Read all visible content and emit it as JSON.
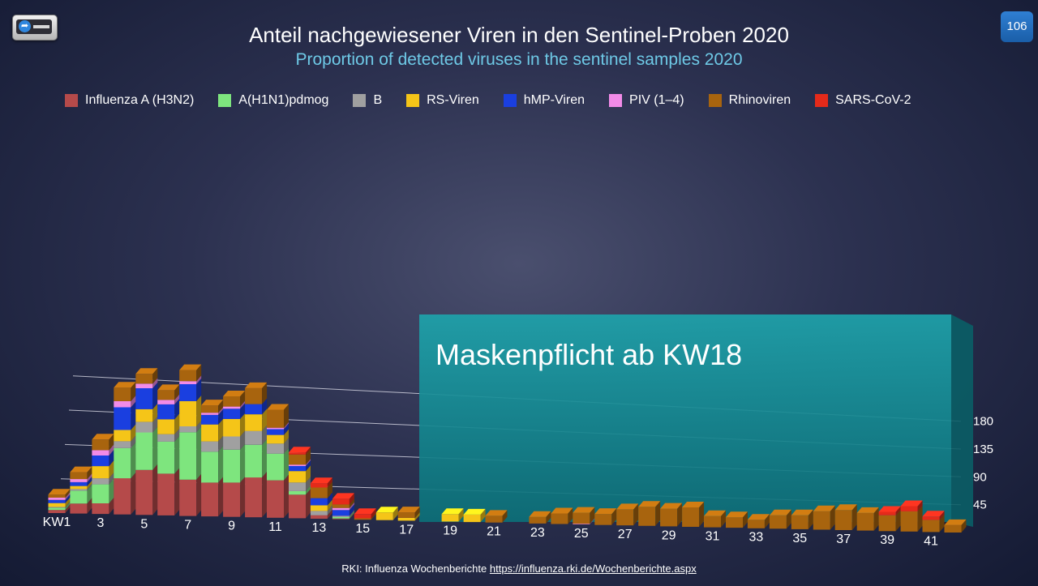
{
  "page_number": "106",
  "title": "Anteil nachgewiesener Viren in den Sentinel-Proben 2020",
  "subtitle": "Proportion of detected viruses in the sentinel samples 2020",
  "annotation": "Maskenpflicht ab KW18",
  "source": {
    "text": "RKI: Influenza Wochenberichte",
    "link": "https://influenza.rki.de/Wochenberichte.aspx"
  },
  "chart_data": {
    "type": "bar",
    "stacked": true,
    "view": "3d-perspective",
    "xlabel": "",
    "ylabel": "",
    "ylim": [
      0,
      180
    ],
    "yticks": [
      45,
      90,
      135,
      180
    ],
    "grid": true,
    "legend_position": "top",
    "categories": [
      "1",
      "2",
      "3",
      "4",
      "5",
      "6",
      "7",
      "8",
      "9",
      "10",
      "11",
      "12",
      "13",
      "14",
      "15",
      "16",
      "17",
      "18",
      "19",
      "20",
      "21",
      "22",
      "23",
      "24",
      "25",
      "26",
      "27",
      "28",
      "29",
      "30",
      "31",
      "32",
      "33",
      "34",
      "35",
      "36",
      "37",
      "38",
      "39",
      "40",
      "41",
      "42"
    ],
    "x_tick_labels": [
      "KW1",
      "",
      "3",
      "",
      "5",
      "",
      "7",
      "",
      "9",
      "",
      "11",
      "",
      "13",
      "",
      "15",
      "",
      "17",
      "",
      "19",
      "",
      "21",
      "",
      "23",
      "",
      "25",
      "",
      "27",
      "",
      "29",
      "",
      "31",
      "",
      "33",
      "",
      "35",
      "",
      "37",
      "",
      "39",
      "",
      "41",
      ""
    ],
    "series": [
      {
        "name": "Influenza A (H3N2)",
        "color": "#b54a4a",
        "values": [
          4,
          13,
          14,
          48,
          60,
          56,
          49,
          46,
          47,
          55,
          52,
          33,
          5,
          1,
          0,
          0,
          0,
          0,
          0,
          0,
          0,
          0,
          0,
          0,
          0,
          0,
          0,
          0,
          0,
          0,
          0,
          0,
          0,
          0,
          0,
          0,
          0,
          0,
          0,
          0,
          0,
          0
        ]
      },
      {
        "name": "A(H1N1)pdmog",
        "color": "#7ee57e",
        "values": [
          3,
          17,
          25,
          40,
          50,
          43,
          64,
          42,
          45,
          45,
          37,
          5,
          0,
          2,
          0,
          0,
          0,
          0,
          0,
          0,
          0,
          0,
          0,
          0,
          0,
          0,
          0,
          0,
          0,
          0,
          0,
          0,
          0,
          0,
          0,
          0,
          0,
          0,
          0,
          0,
          0,
          0
        ]
      },
      {
        "name": "B",
        "color": "#a0a0a0",
        "values": [
          1,
          2,
          8,
          9,
          14,
          10,
          8,
          14,
          18,
          19,
          14,
          12,
          6,
          2,
          0,
          0,
          0,
          0,
          0,
          0,
          0,
          0,
          0,
          0,
          0,
          0,
          0,
          0,
          0,
          0,
          0,
          0,
          0,
          0,
          0,
          0,
          0,
          0,
          0,
          0,
          0,
          0
        ]
      },
      {
        "name": "RS-Viren",
        "color": "#f5c518",
        "values": [
          5,
          4,
          16,
          15,
          17,
          20,
          34,
          23,
          24,
          23,
          12,
          16,
          8,
          0,
          0,
          11,
          4,
          0,
          11,
          11,
          0,
          0,
          0,
          0,
          0,
          0,
          0,
          0,
          0,
          0,
          0,
          0,
          0,
          0,
          0,
          0,
          0,
          0,
          0,
          0,
          0,
          0
        ]
      },
      {
        "name": "hMP-Viren",
        "color": "#1a3fe0",
        "values": [
          4,
          5,
          14,
          30,
          28,
          20,
          23,
          13,
          14,
          14,
          8,
          7,
          10,
          8,
          0,
          0,
          0,
          0,
          0,
          0,
          0,
          0,
          0,
          0,
          0,
          0,
          0,
          0,
          0,
          0,
          0,
          0,
          0,
          0,
          0,
          0,
          0,
          0,
          0,
          0,
          0,
          0
        ]
      },
      {
        "name": "PIV (1–4)",
        "color": "#f28be8",
        "values": [
          3,
          4,
          7,
          8,
          6,
          6,
          4,
          3,
          3,
          0,
          2,
          2,
          0,
          3,
          0,
          0,
          0,
          0,
          0,
          0,
          0,
          0,
          0,
          0,
          1,
          0,
          0,
          0,
          0,
          0,
          0,
          0,
          0,
          0,
          0,
          0,
          0,
          0,
          0,
          0,
          0,
          0
        ]
      },
      {
        "name": "Rhinoviren",
        "color": "#a8640e",
        "values": [
          4,
          9,
          14,
          18,
          13,
          13,
          15,
          10,
          14,
          22,
          25,
          14,
          15,
          5,
          2,
          0,
          8,
          0,
          0,
          0,
          10,
          0,
          10,
          16,
          17,
          17,
          25,
          30,
          28,
          31,
          18,
          17,
          14,
          22,
          23,
          31,
          34,
          30,
          27,
          35,
          21,
          13
        ]
      },
      {
        "name": "SARS-CoV-2",
        "color": "#e52a1a",
        "values": [
          0,
          0,
          0,
          0,
          0,
          0,
          0,
          0,
          0,
          0,
          0,
          3,
          6,
          8,
          6,
          0,
          0,
          0,
          0,
          0,
          0,
          0,
          0,
          0,
          0,
          0,
          0,
          0,
          0,
          0,
          0,
          0,
          0,
          0,
          0,
          0,
          0,
          0,
          6,
          9,
          6,
          0
        ]
      }
    ]
  }
}
